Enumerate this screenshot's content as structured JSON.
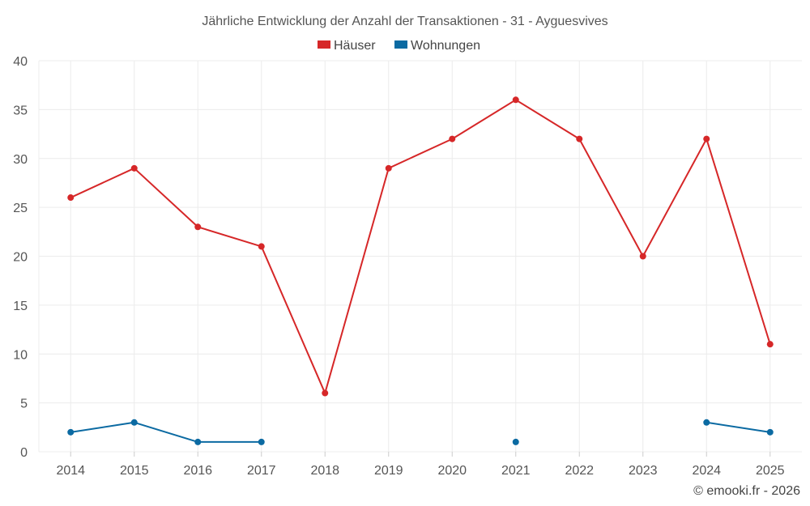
{
  "chart_data": {
    "type": "line",
    "title": "Jährliche Entwicklung der Anzahl der Transaktionen - 31 - Ayguesvives",
    "categories": [
      "2014",
      "2015",
      "2016",
      "2017",
      "2018",
      "2019",
      "2020",
      "2021",
      "2022",
      "2023",
      "2024",
      "2025"
    ],
    "ylim": [
      0,
      40
    ],
    "yticks": [
      0,
      5,
      10,
      15,
      20,
      25,
      30,
      35,
      40
    ],
    "grid": true,
    "legend_position": "top-center",
    "series": [
      {
        "name": "Häuser",
        "color": "#d62728",
        "values": [
          26,
          29,
          23,
          21,
          6,
          29,
          32,
          36,
          32,
          20,
          32,
          11
        ]
      },
      {
        "name": "Wohnungen",
        "color": "#0b6aa2",
        "values": [
          2,
          3,
          1,
          1,
          null,
          null,
          null,
          1,
          null,
          null,
          3,
          2
        ]
      }
    ],
    "credit": "© emooki.fr - 2026"
  }
}
